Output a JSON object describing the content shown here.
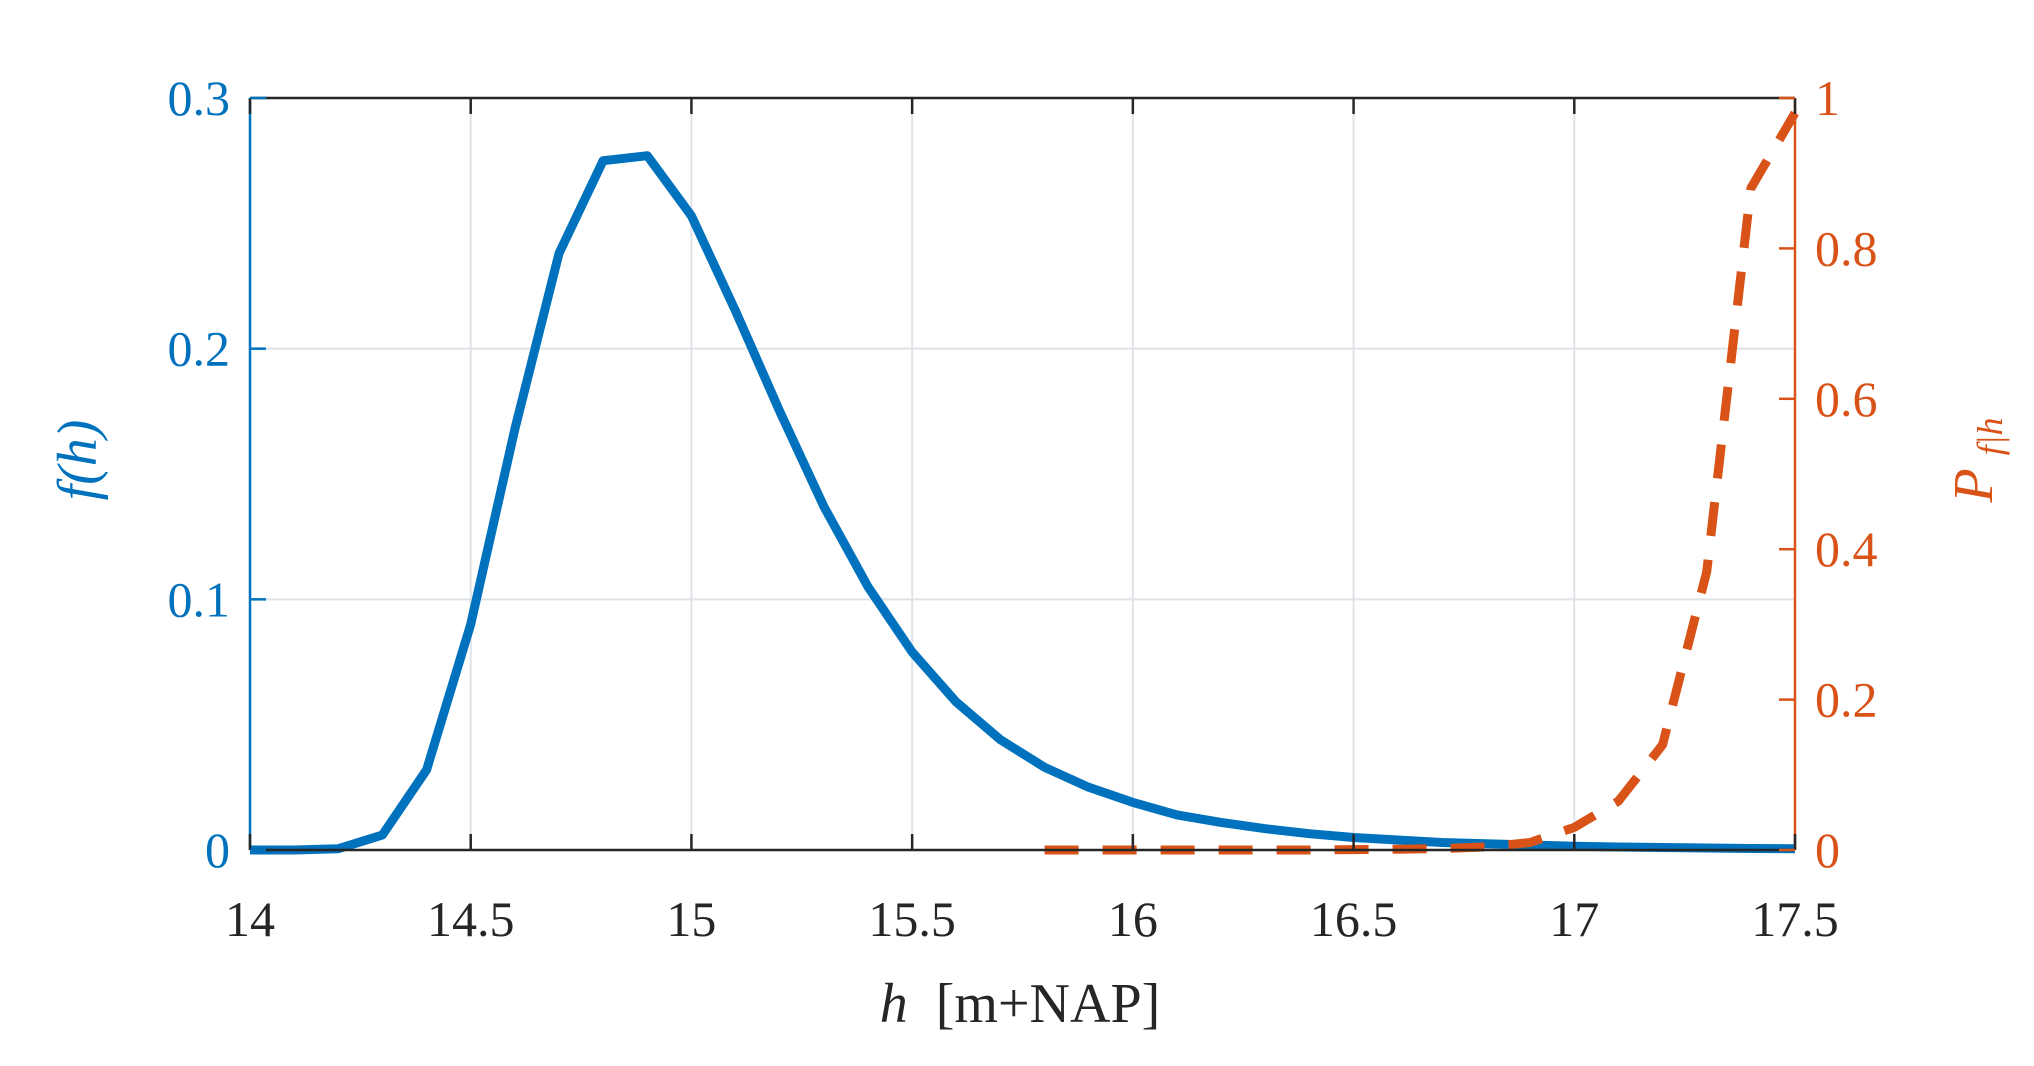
{
  "colors": {
    "left_axis": "#0072BD",
    "right_axis": "#D95319",
    "x_axis": "#262626",
    "grid": "#dfe3e8",
    "frame": "#262626"
  },
  "chart_data": {
    "type": "line",
    "xlabel_var": "h",
    "xlabel_unit": "[m+NAP]",
    "ylabel_left": "f(h)",
    "ylabel_right_main": "P",
    "ylabel_right_sub": "f|h",
    "xlim": [
      14,
      17.5
    ],
    "ylim_left": [
      0,
      0.3
    ],
    "ylim_right": [
      0,
      1
    ],
    "x_ticks": [
      "14",
      "14.5",
      "15",
      "15.5",
      "16",
      "16.5",
      "17",
      "17.5"
    ],
    "y_left_ticks": [
      "0",
      "0.1",
      "0.2",
      "0.3"
    ],
    "y_right_ticks": [
      "0",
      "0.2",
      "0.4",
      "0.6",
      "0.8",
      "1"
    ],
    "grid": true,
    "series": [
      {
        "axis": "left",
        "style": "solid",
        "x": [
          14.0,
          14.1,
          14.2,
          14.3,
          14.4,
          14.5,
          14.6,
          14.7,
          14.8,
          14.9,
          15.0,
          15.1,
          15.2,
          15.3,
          15.4,
          15.5,
          15.6,
          15.7,
          15.8,
          15.9,
          16.0,
          16.1,
          16.2,
          16.3,
          16.4,
          16.5,
          16.6,
          16.7,
          16.8,
          16.9,
          17.0,
          17.1,
          17.2,
          17.3,
          17.4,
          17.5
        ],
        "y": [
          0.0,
          0.0,
          0.0005,
          0.006,
          0.032,
          0.09,
          0.168,
          0.238,
          0.275,
          0.277,
          0.253,
          0.215,
          0.175,
          0.137,
          0.105,
          0.079,
          0.059,
          0.044,
          0.033,
          0.025,
          0.019,
          0.014,
          0.011,
          0.0085,
          0.0065,
          0.005,
          0.004,
          0.003,
          0.0025,
          0.002,
          0.0015,
          0.0012,
          0.001,
          0.0008,
          0.0006,
          0.0005
        ]
      },
      {
        "axis": "right",
        "style": "dashed",
        "x": [
          15.8,
          16.0,
          16.2,
          16.4,
          16.6,
          16.7,
          16.8,
          16.9,
          17.0,
          17.1,
          17.2,
          17.3,
          17.4,
          17.5
        ],
        "y": [
          0.0,
          0.0,
          0.0,
          0.0,
          0.001,
          0.002,
          0.004,
          0.01,
          0.03,
          0.065,
          0.14,
          0.37,
          0.88,
          0.98
        ]
      }
    ]
  }
}
